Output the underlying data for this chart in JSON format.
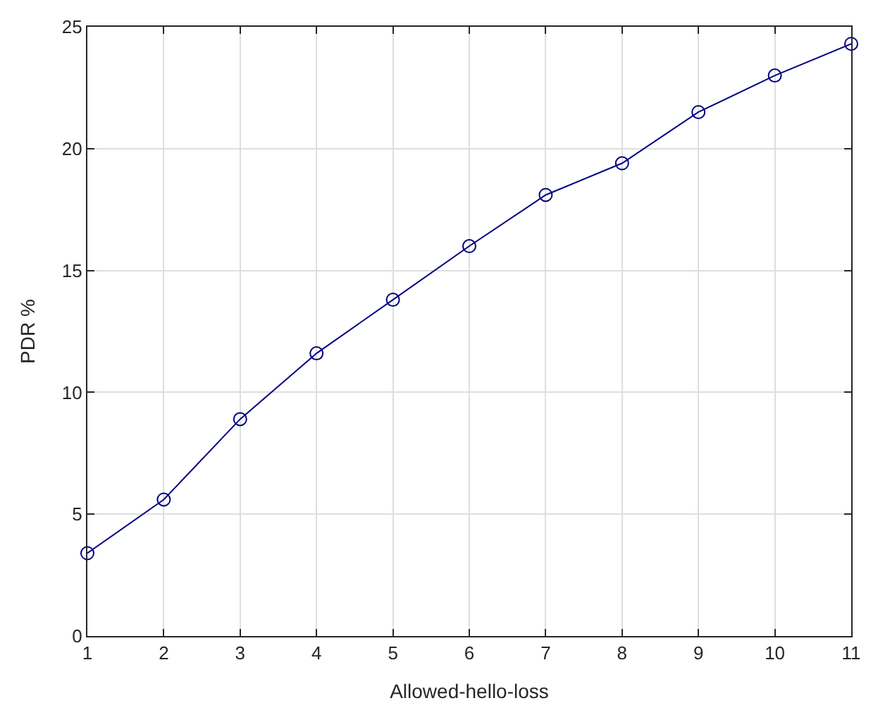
{
  "chart_data": {
    "type": "line",
    "xlabel": "Allowed-hello-loss",
    "ylabel": "PDR %",
    "x": [
      1,
      2,
      3,
      4,
      5,
      6,
      7,
      8,
      9,
      10,
      11
    ],
    "series": [
      {
        "color": "#00007f",
        "values": [
          3.4,
          5.6,
          8.9,
          11.6,
          13.8,
          16.0,
          18.1,
          19.4,
          21.5,
          23.0,
          24.3
        ]
      }
    ],
    "xlim": [
      1,
      11
    ],
    "xticks": [
      1,
      2,
      3,
      4,
      5,
      6,
      7,
      8,
      9,
      10,
      11
    ],
    "ylim": [
      0,
      25
    ],
    "yticks": [
      0,
      5,
      10,
      15,
      20,
      25
    ],
    "grid": true,
    "marker": "circle",
    "line_style": "solid",
    "legend": false
  }
}
